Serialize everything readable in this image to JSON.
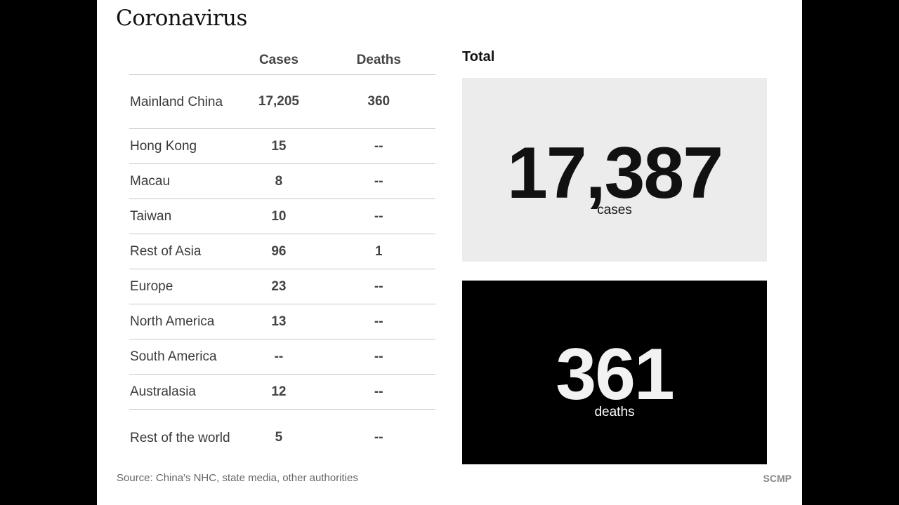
{
  "title": "Coronavirus",
  "table": {
    "headers": {
      "region": "",
      "cases": "Cases",
      "deaths": "Deaths"
    },
    "rows": [
      {
        "region": "Mainland China",
        "cases": "17,205",
        "deaths": "360"
      },
      {
        "region": "Hong Kong",
        "cases": "15",
        "deaths": "--"
      },
      {
        "region": "Macau",
        "cases": "8",
        "deaths": "--"
      },
      {
        "region": "Taiwan",
        "cases": "10",
        "deaths": "--"
      },
      {
        "region": "Rest of Asia",
        "cases": "96",
        "deaths": "1"
      },
      {
        "region": "Europe",
        "cases": "23",
        "deaths": "--"
      },
      {
        "region": "North America",
        "cases": "13",
        "deaths": "--"
      },
      {
        "region": "South America",
        "cases": "--",
        "deaths": "--"
      },
      {
        "region": "Australasia",
        "cases": "12",
        "deaths": "--"
      },
      {
        "region": "Rest of the world",
        "cases": "5",
        "deaths": "--"
      }
    ]
  },
  "total": {
    "label": "Total",
    "cases": {
      "value": "17,387",
      "unit": "cases"
    },
    "deaths": {
      "value": "361",
      "unit": "deaths"
    }
  },
  "source": "Source: China's NHC, state media, other authorities",
  "brand": "SCMP",
  "colors": {
    "page_background": "#ffffff",
    "outer_background": "#000000",
    "cases_box": "#ececec",
    "deaths_box": "#000000"
  }
}
